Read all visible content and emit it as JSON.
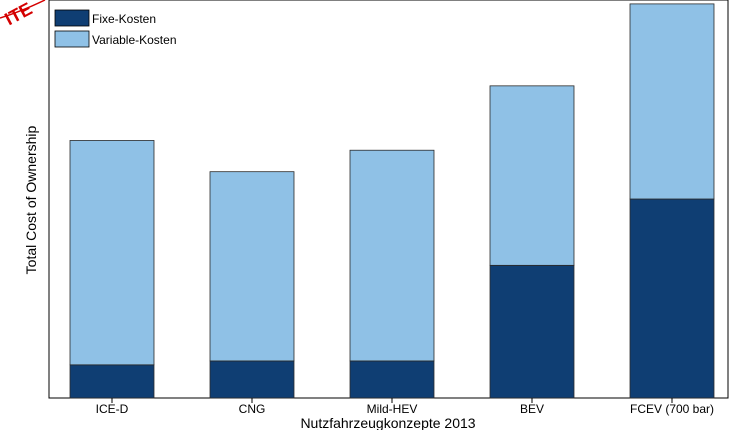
{
  "stamp": {
    "text": "ITE",
    "color": "#d40000"
  },
  "chart_data": {
    "type": "bar",
    "stacked": true,
    "categories": [
      "ICE-D",
      "CNG",
      "Mild-HEV",
      "BEV",
      "FCEV (700 bar)"
    ],
    "series": [
      {
        "name": "Fixe-Kosten",
        "color": "#0f3e73",
        "values": [
          8.5,
          9.5,
          9.5,
          34,
          51
        ]
      },
      {
        "name": "Variable-Kosten",
        "color": "#8fc1e6",
        "values": [
          57.5,
          48.5,
          54,
          46,
          50
        ]
      }
    ],
    "title": "",
    "xlabel": "Nutzfahrzeugkonzepte 2013",
    "ylabel": "Total Cost of Ownership",
    "ylim": [
      0,
      102
    ],
    "grid": false,
    "legend": {
      "position": "top-left"
    }
  }
}
